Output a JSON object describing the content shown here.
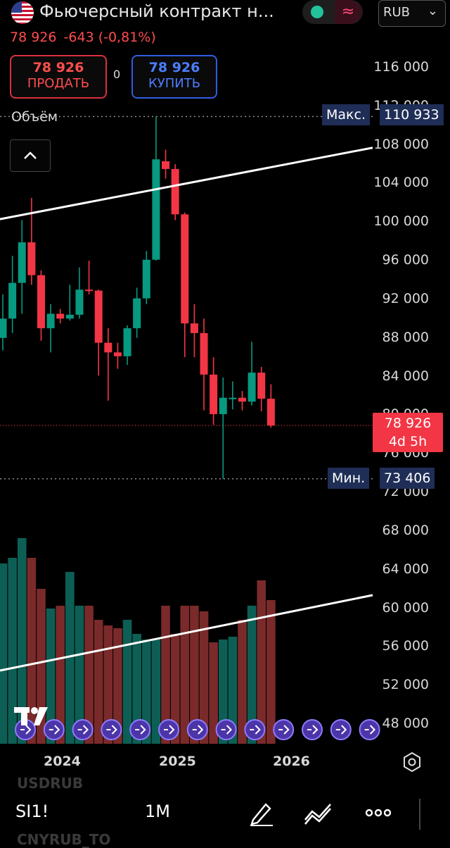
{
  "header": {
    "title": "Фьючерсный контракт н...",
    "currency": "RUB",
    "flag_icon": "us-flag-icon",
    "status_icon": "market-open-icon",
    "wave_icon": "wave-icon"
  },
  "quote": {
    "price": "78 926",
    "change": "-643",
    "change_pct": "(-0,81%)"
  },
  "trade": {
    "sell_price": "78 926",
    "sell_label": "ПРОДАТЬ",
    "spread": "0",
    "buy_price": "78 926",
    "buy_label": "КУПИТЬ"
  },
  "chart": {
    "volume_label": "Объём",
    "max_label": "Макс.",
    "max_value": "110 933",
    "min_label": "Мин.",
    "min_value": "73 406",
    "current_price": "78 926",
    "countdown": "4d 5h",
    "y_ticks": [
      "116 000",
      "112 000",
      "108 000",
      "104 000",
      "100 000",
      "96 000",
      "92 000",
      "88 000",
      "84 000",
      "80 000",
      "76 000",
      "72 000",
      "68 000",
      "64 000",
      "60 000",
      "56 000",
      "52 000",
      "48 000"
    ],
    "x_ticks": [
      "2024",
      "2025",
      "2026"
    ]
  },
  "chart_data": {
    "type": "candlestick",
    "interval": "1M",
    "y_range": [
      46000,
      118000
    ],
    "up_color": "#089981",
    "down_color": "#f23645",
    "candles": [
      {
        "o": 88000,
        "c": 90000,
        "h": 92500,
        "l": 86700
      },
      {
        "o": 90000,
        "c": 93700,
        "h": 96500,
        "l": 88500
      },
      {
        "o": 93700,
        "c": 97900,
        "h": 100200,
        "l": 90500
      },
      {
        "o": 97900,
        "c": 94500,
        "h": 102500,
        "l": 93500
      },
      {
        "o": 94500,
        "c": 89000,
        "h": 95000,
        "l": 87700
      },
      {
        "o": 89000,
        "c": 90500,
        "h": 91500,
        "l": 86500
      },
      {
        "o": 90500,
        "c": 90000,
        "h": 91000,
        "l": 89500
      },
      {
        "o": 90000,
        "c": 90400,
        "h": 93500,
        "l": 89800
      },
      {
        "o": 90400,
        "c": 93000,
        "h": 95300,
        "l": 90000
      },
      {
        "o": 93000,
        "c": 92900,
        "h": 96000,
        "l": 92500
      },
      {
        "o": 92900,
        "c": 87500,
        "h": 93000,
        "l": 84100
      },
      {
        "o": 87500,
        "c": 86500,
        "h": 89000,
        "l": 81500
      },
      {
        "o": 86500,
        "c": 86100,
        "h": 87500,
        "l": 84800
      },
      {
        "o": 86100,
        "c": 89000,
        "h": 89300,
        "l": 85200
      },
      {
        "o": 89000,
        "c": 92100,
        "h": 93200,
        "l": 88000
      },
      {
        "o": 92100,
        "c": 96100,
        "h": 97000,
        "l": 91500
      },
      {
        "o": 96100,
        "c": 106500,
        "h": 110933,
        "l": 96000
      },
      {
        "o": 106300,
        "c": 105500,
        "h": 107500,
        "l": 104500
      },
      {
        "o": 105500,
        "c": 100800,
        "h": 106000,
        "l": 100200
      },
      {
        "o": 100800,
        "c": 89500,
        "h": 101000,
        "l": 86000
      },
      {
        "o": 89500,
        "c": 88500,
        "h": 91500,
        "l": 86000
      },
      {
        "o": 88500,
        "c": 84200,
        "h": 90000,
        "l": 80500
      },
      {
        "o": 84200,
        "c": 80100,
        "h": 86000,
        "l": 79000
      },
      {
        "o": 80100,
        "c": 81800,
        "h": 83900,
        "l": 73406
      },
      {
        "o": 81800,
        "c": 81800,
        "h": 83500,
        "l": 80600
      },
      {
        "o": 81800,
        "c": 81400,
        "h": 82500,
        "l": 80500
      },
      {
        "o": 81400,
        "c": 84400,
        "h": 87600,
        "l": 81000
      },
      {
        "o": 84400,
        "c": 81700,
        "h": 85000,
        "l": 80400
      },
      {
        "o": 81700,
        "c": 78926,
        "h": 83200,
        "l": 78700
      }
    ],
    "volumes": [
      0.64,
      0.66,
      0.73,
      0.66,
      0.55,
      0.48,
      0.49,
      0.61,
      0.49,
      0.49,
      0.44,
      0.42,
      0.41,
      0.44,
      0.39,
      0.37,
      0.37,
      0.49,
      0.39,
      0.49,
      0.49,
      0.47,
      0.36,
      0.37,
      0.38,
      0.44,
      0.49,
      0.58,
      0.51
    ],
    "trendline_price": {
      "from": {
        "x": 0,
        "y": 100300
      },
      "to": {
        "x": 1,
        "y": 107700
      }
    },
    "max": 110933,
    "min": 73406,
    "last": 78926
  },
  "toolbar": {
    "symbol": "SI1!",
    "interval": "1M",
    "ghost_top": "USDRUB",
    "ghost_bottom": "CNYRUB_TO"
  }
}
